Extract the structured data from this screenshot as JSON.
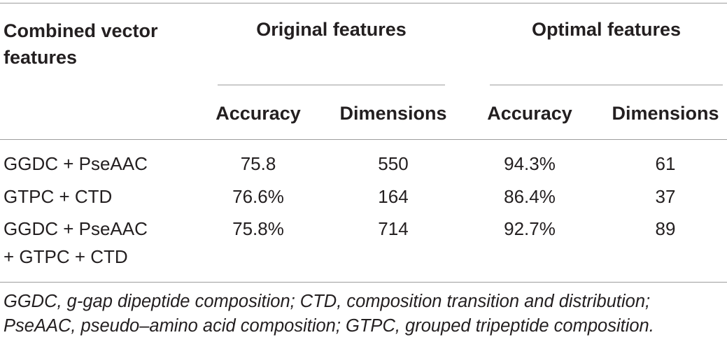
{
  "table": {
    "header": {
      "row_label_line1": "Combined vector",
      "row_label_line2": "features",
      "group1": "Original features",
      "group2": "Optimal features",
      "sub_columns": [
        "Accuracy",
        "Dimensions",
        "Accuracy",
        "Dimensions"
      ]
    },
    "rows": [
      {
        "label_line1": "GGDC + PseAAC",
        "label_line2": "",
        "values": [
          "75.8",
          "550",
          "94.3%",
          "61"
        ]
      },
      {
        "label_line1": "GTPC + CTD",
        "label_line2": "",
        "values": [
          "76.6%",
          "164",
          "86.4%",
          "37"
        ]
      },
      {
        "label_line1": "GGDC + PseAAC",
        "label_line2": "+ GTPC + CTD",
        "values": [
          "75.8%",
          "714",
          "92.7%",
          "89"
        ]
      }
    ],
    "footnote": {
      "line1": "GGDC, g-gap dipeptide composition; CTD, composition transition and distribution;",
      "line2": "PseAAC, pseudo–amino acid composition; GTPC, grouped tripeptide composition."
    }
  }
}
